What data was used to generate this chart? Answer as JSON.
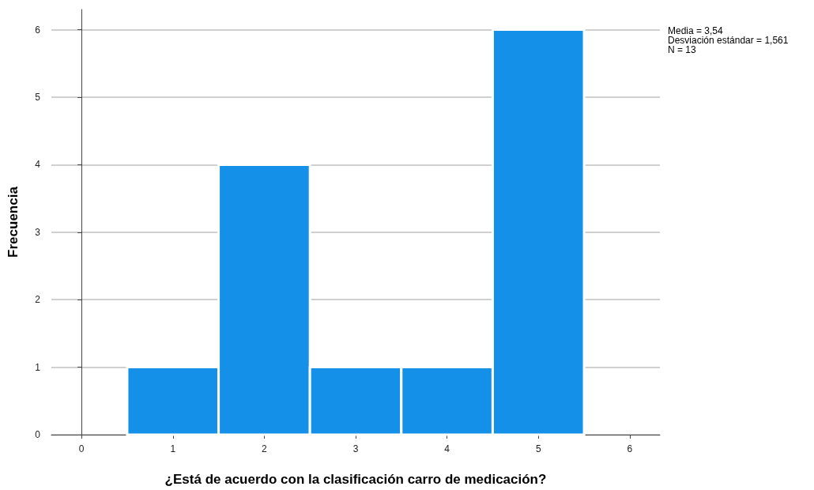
{
  "chart_data": {
    "type": "histogram",
    "xlabel": "¿Está de acuerdo con la clasificación carro de medicación?",
    "ylabel": "Frecuencia",
    "bins": [
      0.5,
      1.5,
      2.5,
      3.5,
      4.5,
      5.5
    ],
    "values": [
      1,
      4,
      1,
      1,
      6
    ],
    "color": "#1490e8",
    "xlim": [
      -0.33,
      6.33
    ],
    "xticks": [
      0,
      1,
      2,
      3,
      4,
      5,
      6
    ],
    "ylim": [
      0,
      6.3
    ],
    "yticks": [
      0,
      1,
      2,
      3,
      4,
      5,
      6
    ],
    "grid": "y",
    "annotations": [
      "Media = 3,54",
      "Desviación estándar = 1,561",
      "N = 13"
    ]
  }
}
